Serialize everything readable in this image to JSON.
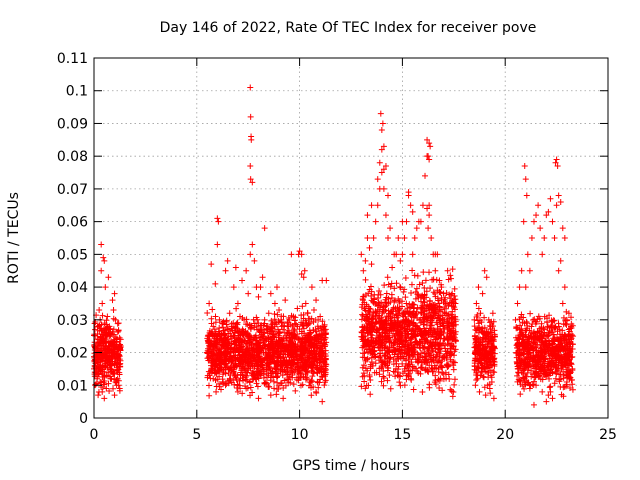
{
  "chart_data": {
    "type": "scatter",
    "title": "Day 146 of 2022, Rate Of TEC Index for receiver pove",
    "xlabel": "GPS time / hours",
    "ylabel": "ROTI / TECUs",
    "xlim": [
      0,
      25
    ],
    "ylim": [
      0,
      0.11
    ],
    "xticks": [
      0,
      5,
      10,
      15,
      20,
      25
    ],
    "xtick_labels": [
      "0",
      "5",
      "10",
      "15",
      "20",
      "25"
    ],
    "yticks": [
      0,
      0.01,
      0.02,
      0.03,
      0.04,
      0.05,
      0.06,
      0.07,
      0.08,
      0.09,
      0.1,
      0.11
    ],
    "ytick_labels": [
      "0",
      "0.01",
      "0.02",
      "0.03",
      "0.04",
      "0.05",
      "0.06",
      "0.07",
      "0.08",
      "0.09",
      "0.1",
      "0.11"
    ],
    "grid": true,
    "marker": "+",
    "color": "#ff0000",
    "series": [
      {
        "x": [
          0.0,
          0.1,
          0.15,
          0.2,
          0.3,
          0.35,
          0.4,
          0.45,
          0.5,
          0.55,
          0.6,
          0.65,
          0.7,
          0.75,
          0.8,
          0.85,
          0.9,
          0.95,
          1.0,
          1.05,
          1.1,
          1.15,
          1.2,
          1.25,
          1.3,
          0.3,
          0.4,
          0.5,
          0.6,
          0.8,
          1.0,
          1.1,
          0.05,
          0.25,
          0.7,
          0.9,
          1.2,
          0.45,
          0.55,
          0.85,
          1.15,
          0.35,
          0.65,
          0.95,
          1.25,
          0.2,
          0.6,
          1.05,
          0.15,
          0.75,
          5.5,
          5.6,
          5.7,
          5.8,
          5.9,
          6.0,
          6.1,
          6.2,
          6.3,
          6.4,
          6.5,
          6.6,
          6.7,
          6.8,
          6.9,
          7.0,
          7.1,
          7.2,
          7.3,
          7.4,
          7.5,
          7.6,
          7.7,
          7.8,
          7.9,
          8.0,
          8.1,
          8.2,
          8.3,
          8.4,
          8.5,
          8.6,
          8.7,
          8.8,
          8.9,
          9.0,
          9.1,
          9.2,
          9.3,
          9.4,
          9.5,
          9.6,
          9.7,
          9.8,
          9.9,
          10.0,
          10.1,
          10.2,
          10.3,
          10.4,
          10.5,
          10.6,
          10.7,
          10.8,
          10.9,
          11.0,
          11.1,
          11.2,
          11.3,
          7.6,
          7.62,
          7.64,
          7.65,
          7.6,
          7.62,
          6.0,
          6.05,
          7.7,
          8.3,
          9.95,
          10.1,
          10.25,
          6.4,
          7.0,
          8.6,
          9.2,
          10.8,
          11.1,
          5.8,
          6.6,
          7.4,
          8.0,
          9.0,
          10.5,
          13.0,
          13.1,
          13.2,
          13.3,
          13.4,
          13.5,
          13.6,
          13.7,
          13.8,
          13.9,
          14.0,
          14.1,
          14.2,
          14.3,
          14.4,
          14.5,
          14.6,
          14.7,
          14.8,
          14.9,
          15.0,
          15.1,
          15.2,
          15.3,
          15.4,
          15.5,
          15.6,
          15.7,
          15.8,
          15.9,
          16.0,
          16.1,
          16.2,
          16.3,
          16.4,
          16.5,
          16.6,
          16.7,
          16.8,
          16.9,
          17.0,
          17.1,
          17.2,
          17.3,
          17.4,
          17.5,
          13.95,
          14.0,
          14.05,
          14.1,
          14.0,
          13.9,
          14.1,
          14.2,
          13.8,
          14.3,
          16.2,
          16.3,
          16.25,
          16.35,
          16.3,
          16.2,
          16.3,
          16.25,
          15.3,
          15.5,
          16.6,
          13.5,
          13.3,
          15.0,
          17.2,
          18.5,
          18.6,
          18.7,
          18.8,
          18.9,
          19.0,
          19.1,
          19.2,
          19.3,
          19.4,
          19.5,
          18.55,
          18.75,
          19.05,
          19.25,
          19.45,
          18.65,
          18.85,
          19.15,
          19.35,
          20.5,
          20.6,
          20.7,
          20.8,
          20.9,
          21.0,
          21.1,
          21.2,
          21.3,
          21.4,
          21.5,
          21.6,
          21.7,
          21.8,
          21.9,
          22.0,
          22.1,
          22.2,
          22.3,
          22.4,
          22.5,
          22.6,
          22.7,
          22.8,
          22.9,
          23.0,
          23.1,
          23.2,
          23.3,
          20.95,
          21.0,
          21.05,
          22.45,
          22.5,
          22.55,
          22.6,
          22.7,
          22.8,
          22.9,
          21.5,
          21.8,
          22.1,
          22.3,
          21.2,
          22.0,
          20.9,
          21.4,
          22.2,
          23.0
        ],
        "y": [
          0.015,
          0.02,
          0.012,
          0.018,
          0.03,
          0.053,
          0.035,
          0.049,
          0.048,
          0.04,
          0.025,
          0.018,
          0.022,
          0.028,
          0.015,
          0.012,
          0.02,
          0.033,
          0.038,
          0.03,
          0.024,
          0.014,
          0.01,
          0.018,
          0.022,
          0.011,
          0.008,
          0.006,
          0.009,
          0.012,
          0.007,
          0.01,
          0.027,
          0.033,
          0.043,
          0.036,
          0.029,
          0.025,
          0.022,
          0.016,
          0.012,
          0.045,
          0.031,
          0.014,
          0.009,
          0.007,
          0.013,
          0.011,
          0.019,
          0.026,
          0.02,
          0.035,
          0.047,
          0.028,
          0.041,
          0.053,
          0.03,
          0.025,
          0.022,
          0.045,
          0.048,
          0.032,
          0.028,
          0.04,
          0.046,
          0.035,
          0.031,
          0.042,
          0.03,
          0.045,
          0.038,
          0.05,
          0.053,
          0.048,
          0.04,
          0.037,
          0.04,
          0.043,
          0.03,
          0.028,
          0.032,
          0.038,
          0.029,
          0.035,
          0.04,
          0.033,
          0.03,
          0.027,
          0.036,
          0.026,
          0.03,
          0.05,
          0.031,
          0.025,
          0.028,
          0.051,
          0.044,
          0.043,
          0.035,
          0.032,
          0.029,
          0.04,
          0.033,
          0.036,
          0.03,
          0.031,
          0.042,
          0.028,
          0.042,
          0.101,
          0.092,
          0.086,
          0.085,
          0.077,
          0.073,
          0.061,
          0.06,
          0.072,
          0.058,
          0.05,
          0.05,
          0.045,
          0.01,
          0.008,
          0.007,
          0.006,
          0.008,
          0.005,
          0.012,
          0.015,
          0.009,
          0.006,
          0.01,
          0.011,
          0.05,
          0.045,
          0.048,
          0.055,
          0.052,
          0.047,
          0.055,
          0.06,
          0.065,
          0.07,
          0.075,
          0.07,
          0.062,
          0.055,
          0.058,
          0.046,
          0.05,
          0.05,
          0.055,
          0.048,
          0.05,
          0.055,
          0.06,
          0.068,
          0.065,
          0.05,
          0.055,
          0.058,
          0.06,
          0.06,
          0.065,
          0.074,
          0.08,
          0.065,
          0.055,
          0.05,
          0.045,
          0.05,
          0.042,
          0.04,
          0.038,
          0.035,
          0.03,
          0.028,
          0.025,
          0.022,
          0.093,
          0.088,
          0.09,
          0.083,
          0.082,
          0.078,
          0.076,
          0.077,
          0.073,
          0.068,
          0.085,
          0.084,
          0.08,
          0.083,
          0.079,
          0.064,
          0.062,
          0.058,
          0.069,
          0.063,
          0.05,
          0.065,
          0.062,
          0.06,
          0.045,
          0.03,
          0.035,
          0.04,
          0.032,
          0.038,
          0.045,
          0.043,
          0.03,
          0.028,
          0.032,
          0.025,
          0.01,
          0.008,
          0.007,
          0.009,
          0.006,
          0.012,
          0.014,
          0.01,
          0.011,
          0.03,
          0.035,
          0.04,
          0.045,
          0.06,
          0.04,
          0.05,
          0.045,
          0.055,
          0.06,
          0.062,
          0.065,
          0.058,
          0.05,
          0.055,
          0.062,
          0.063,
          0.067,
          0.06,
          0.055,
          0.065,
          0.045,
          0.048,
          0.035,
          0.04,
          0.03,
          0.032,
          0.028,
          0.025,
          0.077,
          0.073,
          0.068,
          0.078,
          0.079,
          0.077,
          0.068,
          0.066,
          0.058,
          0.055,
          0.01,
          0.008,
          0.007,
          0.006,
          0.009,
          0.005,
          0.012,
          0.004,
          0.008,
          0.011
        ]
      }
    ],
    "dense_clusters": [
      {
        "x_range": [
          0.0,
          1.3
        ],
        "y_range": [
          0.005,
          0.03
        ]
      },
      {
        "x_range": [
          5.5,
          11.3
        ],
        "y_range": [
          0.005,
          0.03
        ]
      },
      {
        "x_range": [
          13.0,
          17.6
        ],
        "y_range": [
          0.004,
          0.04
        ]
      },
      {
        "x_range": [
          18.5,
          19.5
        ],
        "y_range": [
          0.006,
          0.03
        ]
      },
      {
        "x_range": [
          20.5,
          23.3
        ],
        "y_range": [
          0.005,
          0.03
        ]
      }
    ]
  }
}
